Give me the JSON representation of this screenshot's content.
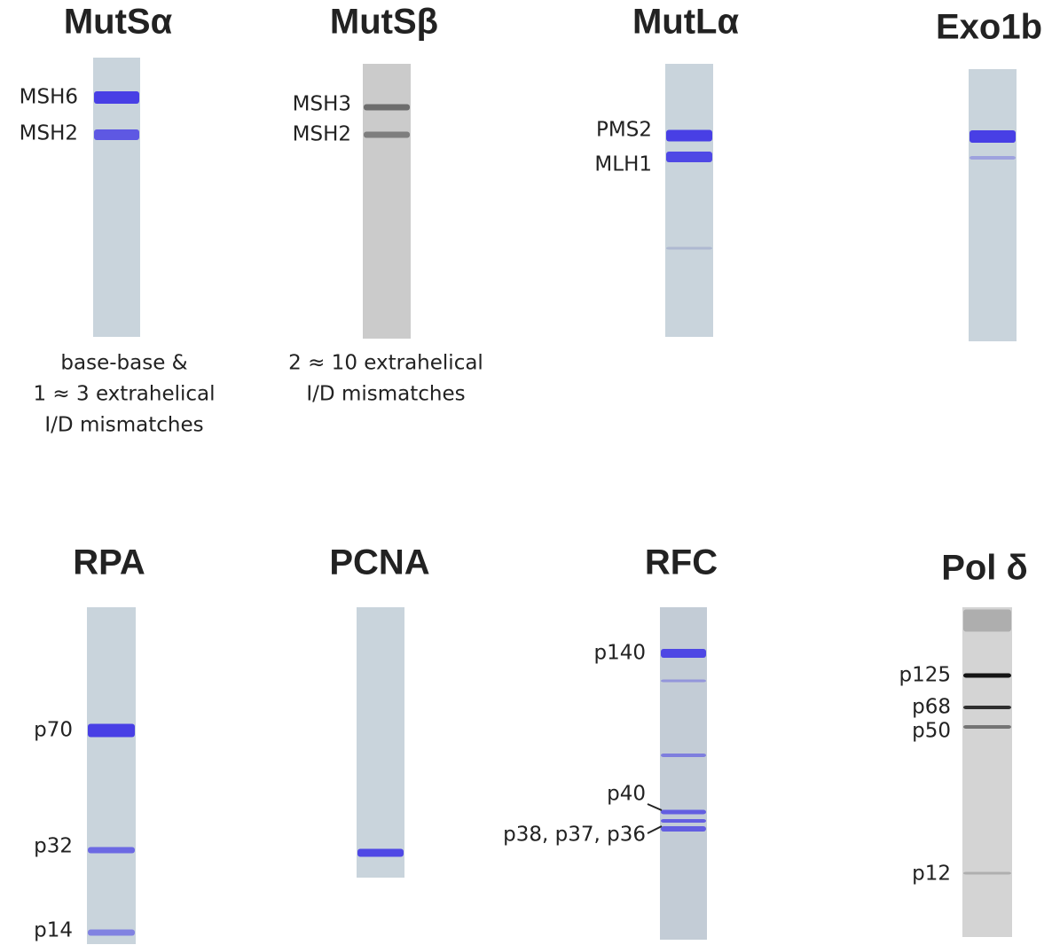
{
  "panels": [
    {
      "title": "MutSα",
      "bands": [
        "MSH6",
        "MSH2"
      ],
      "caption": [
        "base-base &",
        "1 ≈ 3 extrahelical",
        "I/D mismatches"
      ]
    },
    {
      "title": "MutSβ",
      "bands": [
        "MSH3",
        "MSH2"
      ],
      "caption": [
        "2 ≈ 10  extrahelical",
        "I/D mismatches"
      ]
    },
    {
      "title": "MutLα",
      "bands": [
        "PMS2",
        "MLH1"
      ],
      "caption": []
    },
    {
      "title": "Exo1b",
      "bands": [],
      "caption": []
    },
    {
      "title": "RPA",
      "bands": [
        "p70",
        "p32",
        "p14"
      ],
      "caption": []
    },
    {
      "title": "PCNA",
      "bands": [],
      "caption": []
    },
    {
      "title": "RFC",
      "bands": [
        "p140",
        "p40",
        "p38, p37, p36"
      ],
      "caption": []
    },
    {
      "title": "Pol δ",
      "bands": [
        "p125",
        "p68",
        "p50",
        "p12"
      ],
      "caption": []
    }
  ]
}
